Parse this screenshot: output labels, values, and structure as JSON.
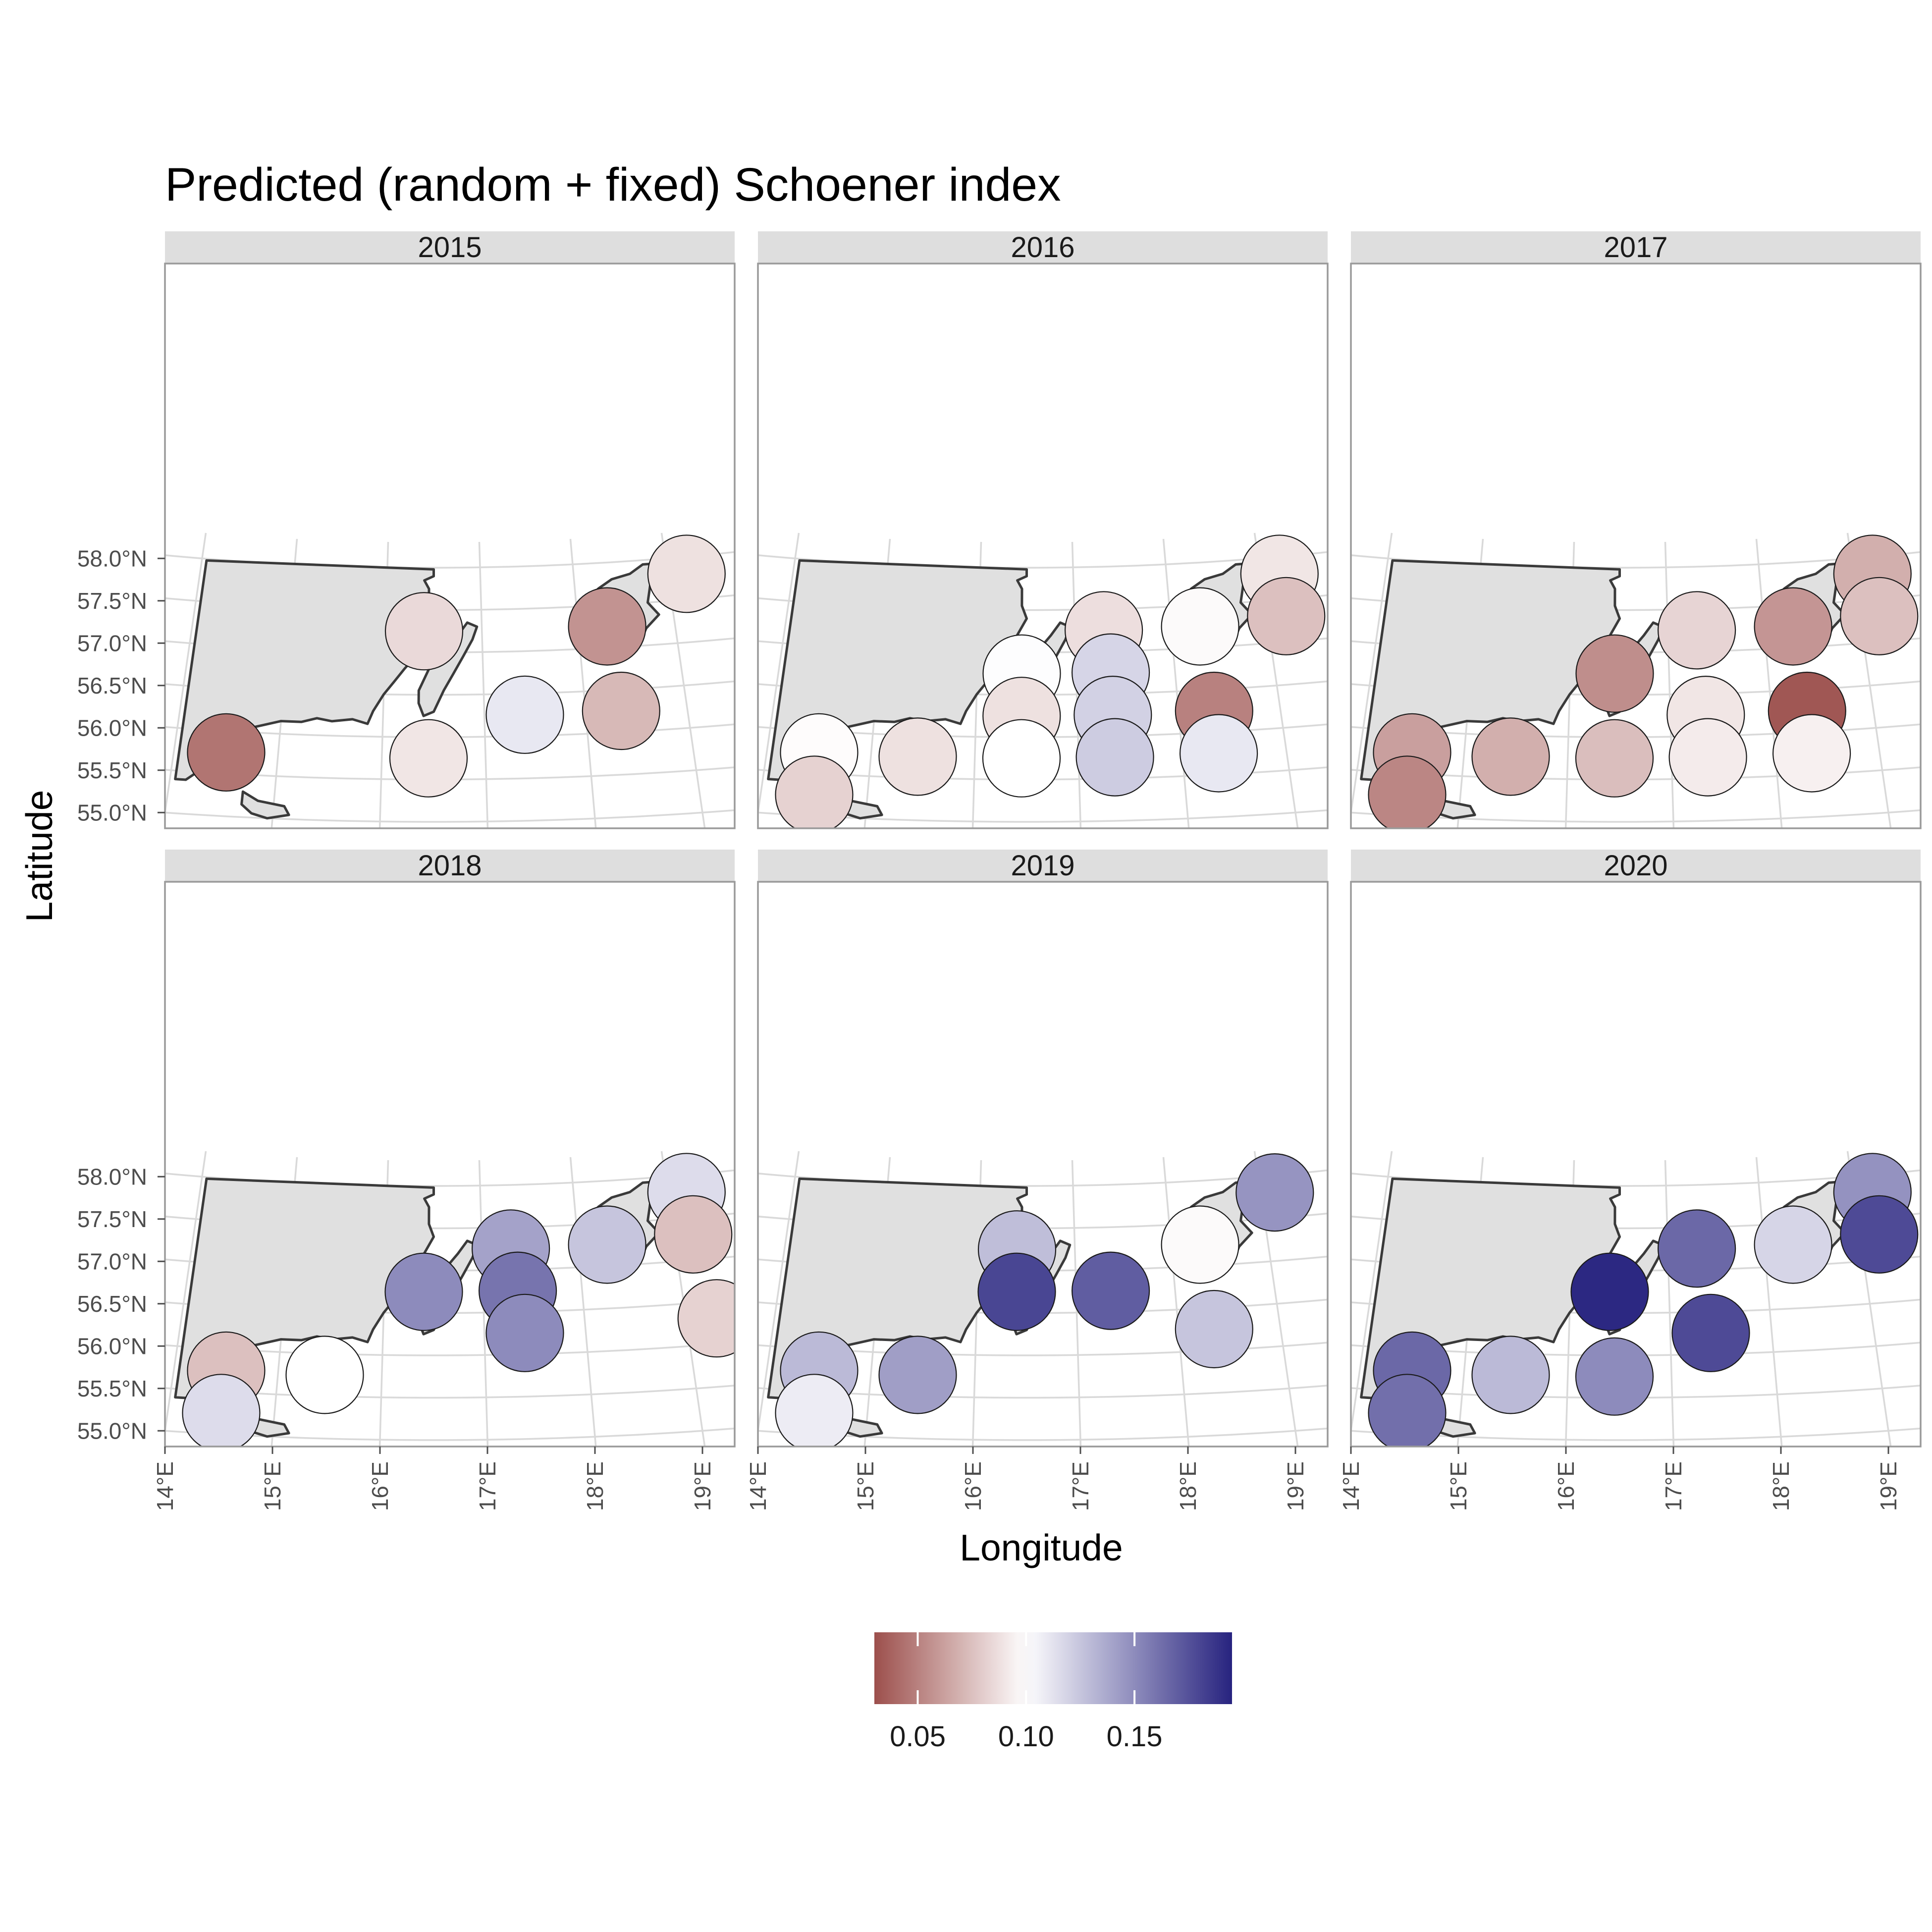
{
  "title": "Predicted (random + fixed) Schoener index",
  "x_axis_title": "Longitude",
  "y_axis_title": "Latitude",
  "lat_ticks": [
    {
      "value": 55.0,
      "label": "55.0°N"
    },
    {
      "value": 55.5,
      "label": "55.5°N"
    },
    {
      "value": 56.0,
      "label": "56.0°N"
    },
    {
      "value": 56.5,
      "label": "56.5°N"
    },
    {
      "value": 57.0,
      "label": "57.0°N"
    },
    {
      "value": 57.5,
      "label": "57.5°N"
    },
    {
      "value": 58.0,
      "label": "58.0°N"
    }
  ],
  "lon_ticks": [
    {
      "value": 14,
      "label": "14°E"
    },
    {
      "value": 15,
      "label": "15°E"
    },
    {
      "value": 16,
      "label": "16°E"
    },
    {
      "value": 17,
      "label": "17°E"
    },
    {
      "value": 18,
      "label": "18°E"
    },
    {
      "value": 19,
      "label": "19°E"
    }
  ],
  "legend": {
    "ticks": [
      {
        "value": 0.05,
        "label": "0.05"
      },
      {
        "value": 0.1,
        "label": "0.10"
      },
      {
        "value": 0.15,
        "label": "0.15"
      }
    ],
    "min": 0.03,
    "max": 0.195,
    "colors": {
      "low": "#9c4f4c",
      "mid": "#ffffff",
      "high": "#27237f"
    }
  },
  "chart_data": {
    "type": "map",
    "title": "Predicted (random + fixed) Schoener index",
    "xlabel": "Longitude",
    "ylabel": "Latitude",
    "xlim": [
      13.8,
      19.6
    ],
    "ylim": [
      54.85,
      58.2
    ],
    "color_scale": {
      "variable": "Predicted Schoener index",
      "midpoint": 0.1,
      "range": [
        0.03,
        0.195
      ]
    },
    "panels": [
      {
        "year": "2015",
        "cells": [
          {
            "lon": 19.2,
            "lat": 57.8,
            "value": 0.088
          },
          {
            "lon": 16.4,
            "lat": 57.25,
            "value": 0.085
          },
          {
            "lon": 18.3,
            "lat": 57.25,
            "value": 0.057
          },
          {
            "lon": 17.4,
            "lat": 56.25,
            "value": 0.11
          },
          {
            "lon": 18.35,
            "lat": 56.25,
            "value": 0.072
          },
          {
            "lon": 14.5,
            "lat": 55.75,
            "value": 0.045
          },
          {
            "lon": 16.45,
            "lat": 55.75,
            "value": 0.09
          }
        ]
      },
      {
        "year": "2016",
        "cells": [
          {
            "lon": 19.2,
            "lat": 57.8,
            "value": 0.09
          },
          {
            "lon": 17.3,
            "lat": 57.25,
            "value": 0.087
          },
          {
            "lon": 18.3,
            "lat": 57.25,
            "value": 0.098
          },
          {
            "lon": 19.2,
            "lat": 57.3,
            "value": 0.075
          },
          {
            "lon": 16.45,
            "lat": 56.75,
            "value": 0.101
          },
          {
            "lon": 17.35,
            "lat": 56.75,
            "value": 0.118
          },
          {
            "lon": 16.45,
            "lat": 56.25,
            "value": 0.088
          },
          {
            "lon": 17.35,
            "lat": 56.25,
            "value": 0.12
          },
          {
            "lon": 18.35,
            "lat": 56.25,
            "value": 0.05
          },
          {
            "lon": 14.5,
            "lat": 55.75,
            "value": 0.099
          },
          {
            "lon": 15.45,
            "lat": 55.75,
            "value": 0.088
          },
          {
            "lon": 16.45,
            "lat": 55.75,
            "value": 0.1
          },
          {
            "lon": 17.35,
            "lat": 55.75,
            "value": 0.122
          },
          {
            "lon": 18.35,
            "lat": 55.75,
            "value": 0.11
          },
          {
            "lon": 14.5,
            "lat": 55.25,
            "value": 0.082
          }
        ]
      },
      {
        "year": "2017",
        "cells": [
          {
            "lon": 19.2,
            "lat": 57.8,
            "value": 0.068
          },
          {
            "lon": 17.3,
            "lat": 57.25,
            "value": 0.083
          },
          {
            "lon": 18.3,
            "lat": 57.25,
            "value": 0.058
          },
          {
            "lon": 19.2,
            "lat": 57.3,
            "value": 0.075
          },
          {
            "lon": 16.45,
            "lat": 56.75,
            "value": 0.055
          },
          {
            "lon": 17.35,
            "lat": 56.25,
            "value": 0.09
          },
          {
            "lon": 18.35,
            "lat": 56.25,
            "value": 0.033
          },
          {
            "lon": 14.5,
            "lat": 55.75,
            "value": 0.062
          },
          {
            "lon": 15.45,
            "lat": 55.75,
            "value": 0.068
          },
          {
            "lon": 16.45,
            "lat": 55.75,
            "value": 0.074
          },
          {
            "lon": 17.35,
            "lat": 55.75,
            "value": 0.092
          },
          {
            "lon": 18.35,
            "lat": 55.75,
            "value": 0.094
          },
          {
            "lon": 14.5,
            "lat": 55.25,
            "value": 0.052
          }
        ]
      },
      {
        "year": "2018",
        "cells": [
          {
            "lon": 19.2,
            "lat": 57.8,
            "value": 0.115
          },
          {
            "lon": 17.3,
            "lat": 57.25,
            "value": 0.14
          },
          {
            "lon": 18.3,
            "lat": 57.25,
            "value": 0.125
          },
          {
            "lon": 19.2,
            "lat": 57.3,
            "value": 0.075
          },
          {
            "lon": 16.4,
            "lat": 56.75,
            "value": 0.15
          },
          {
            "lon": 17.35,
            "lat": 56.75,
            "value": 0.16
          },
          {
            "lon": 17.4,
            "lat": 56.25,
            "value": 0.15
          },
          {
            "lon": 19.3,
            "lat": 56.3,
            "value": 0.082
          },
          {
            "lon": 14.5,
            "lat": 55.75,
            "value": 0.075
          },
          {
            "lon": 15.45,
            "lat": 55.75,
            "value": 0.1
          },
          {
            "lon": 14.5,
            "lat": 55.25,
            "value": 0.115
          }
        ]
      },
      {
        "year": "2019",
        "cells": [
          {
            "lon": 19.15,
            "lat": 57.8,
            "value": 0.146
          },
          {
            "lon": 16.4,
            "lat": 57.25,
            "value": 0.128
          },
          {
            "lon": 18.3,
            "lat": 57.25,
            "value": 0.098
          },
          {
            "lon": 16.4,
            "lat": 56.75,
            "value": 0.18
          },
          {
            "lon": 17.35,
            "lat": 56.75,
            "value": 0.17
          },
          {
            "lon": 18.35,
            "lat": 56.25,
            "value": 0.125
          },
          {
            "lon": 14.5,
            "lat": 55.75,
            "value": 0.13
          },
          {
            "lon": 15.45,
            "lat": 55.75,
            "value": 0.142
          },
          {
            "lon": 14.5,
            "lat": 55.25,
            "value": 0.108
          }
        ]
      },
      {
        "year": "2020",
        "cells": [
          {
            "lon": 19.2,
            "lat": 57.8,
            "value": 0.147
          },
          {
            "lon": 17.3,
            "lat": 57.25,
            "value": 0.165
          },
          {
            "lon": 18.3,
            "lat": 57.25,
            "value": 0.118
          },
          {
            "lon": 19.2,
            "lat": 57.3,
            "value": 0.178
          },
          {
            "lon": 16.4,
            "lat": 56.75,
            "value": 0.193
          },
          {
            "lon": 17.4,
            "lat": 56.25,
            "value": 0.178
          },
          {
            "lon": 14.5,
            "lat": 55.75,
            "value": 0.165
          },
          {
            "lon": 15.45,
            "lat": 55.75,
            "value": 0.13
          },
          {
            "lon": 16.45,
            "lat": 55.75,
            "value": 0.15
          },
          {
            "lon": 14.5,
            "lat": 55.25,
            "value": 0.162
          }
        ]
      }
    ]
  }
}
